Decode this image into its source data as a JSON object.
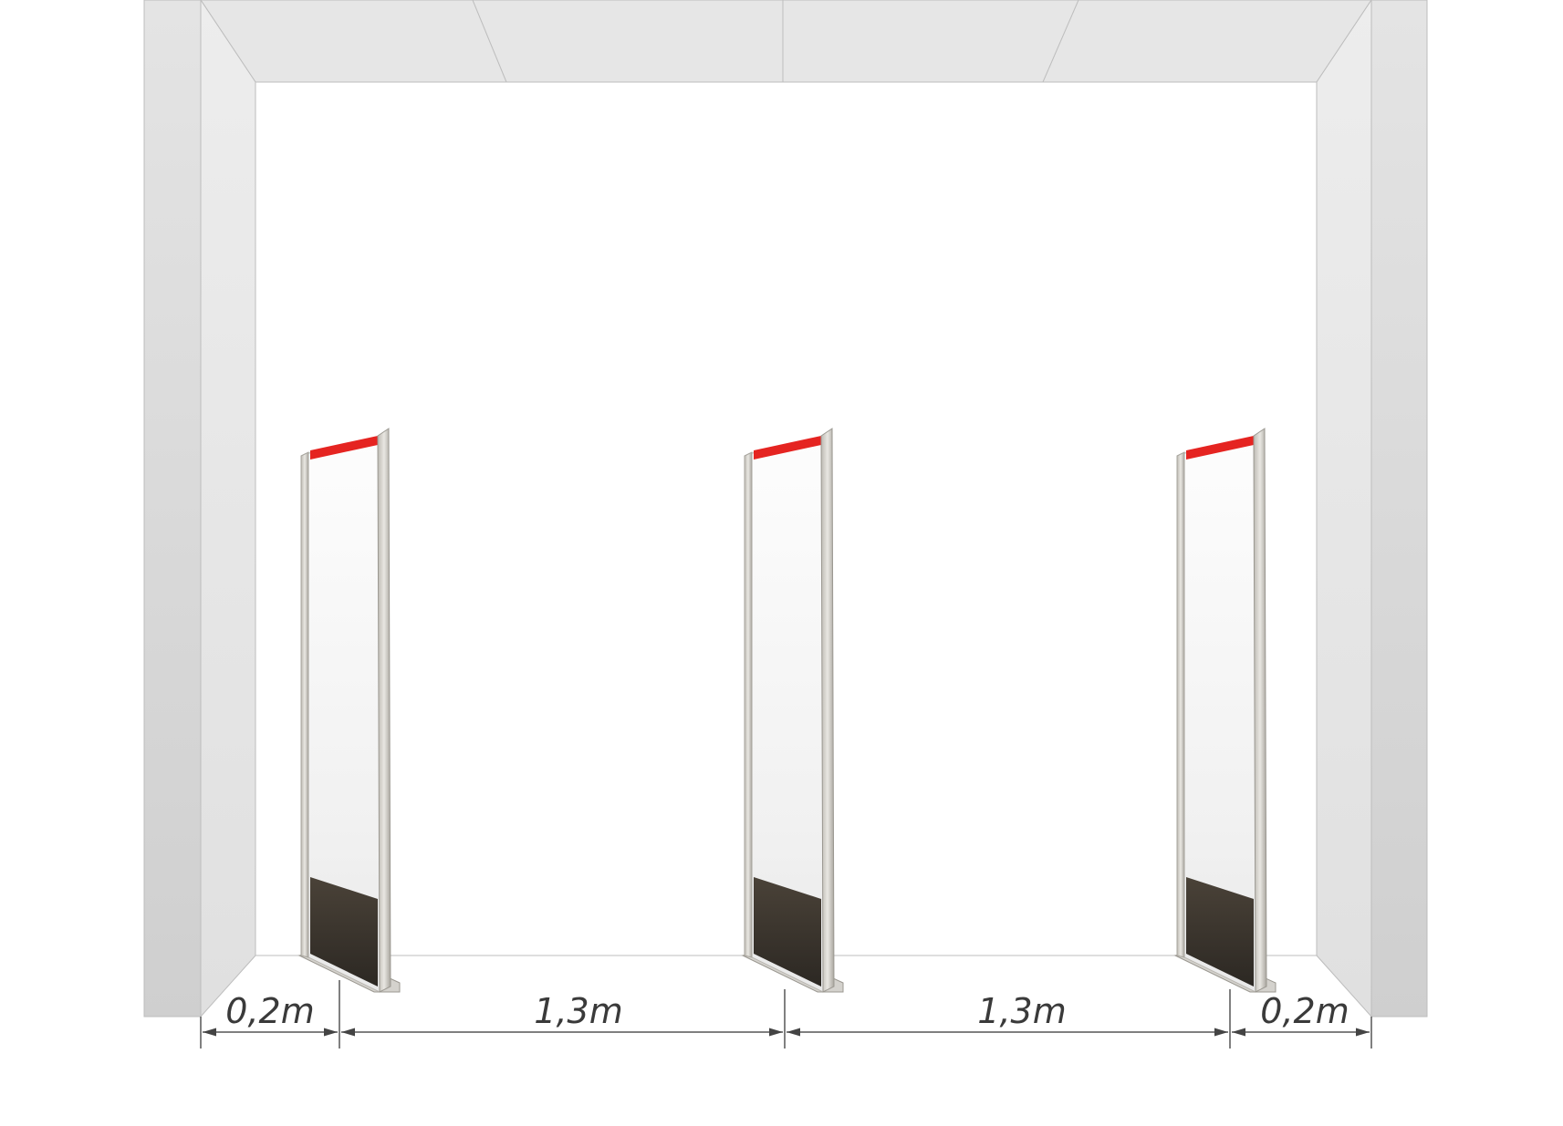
{
  "diagram": {
    "dimensions": [
      {
        "id": "left-gap",
        "label": "0,2m"
      },
      {
        "id": "gap-1",
        "label": "1,3m"
      },
      {
        "id": "gap-2",
        "label": "1,3m"
      },
      {
        "id": "right-gap",
        "label": "0,2m"
      }
    ],
    "antenna_count": 3,
    "colors": {
      "wall_front": "#d9d9d9",
      "ceiling": "#e6e6e6",
      "antenna_stripe": "#e52421",
      "antenna_panel": "#f3f3f3",
      "antenna_base": "#3a342c",
      "dimension_line": "#555555"
    }
  }
}
